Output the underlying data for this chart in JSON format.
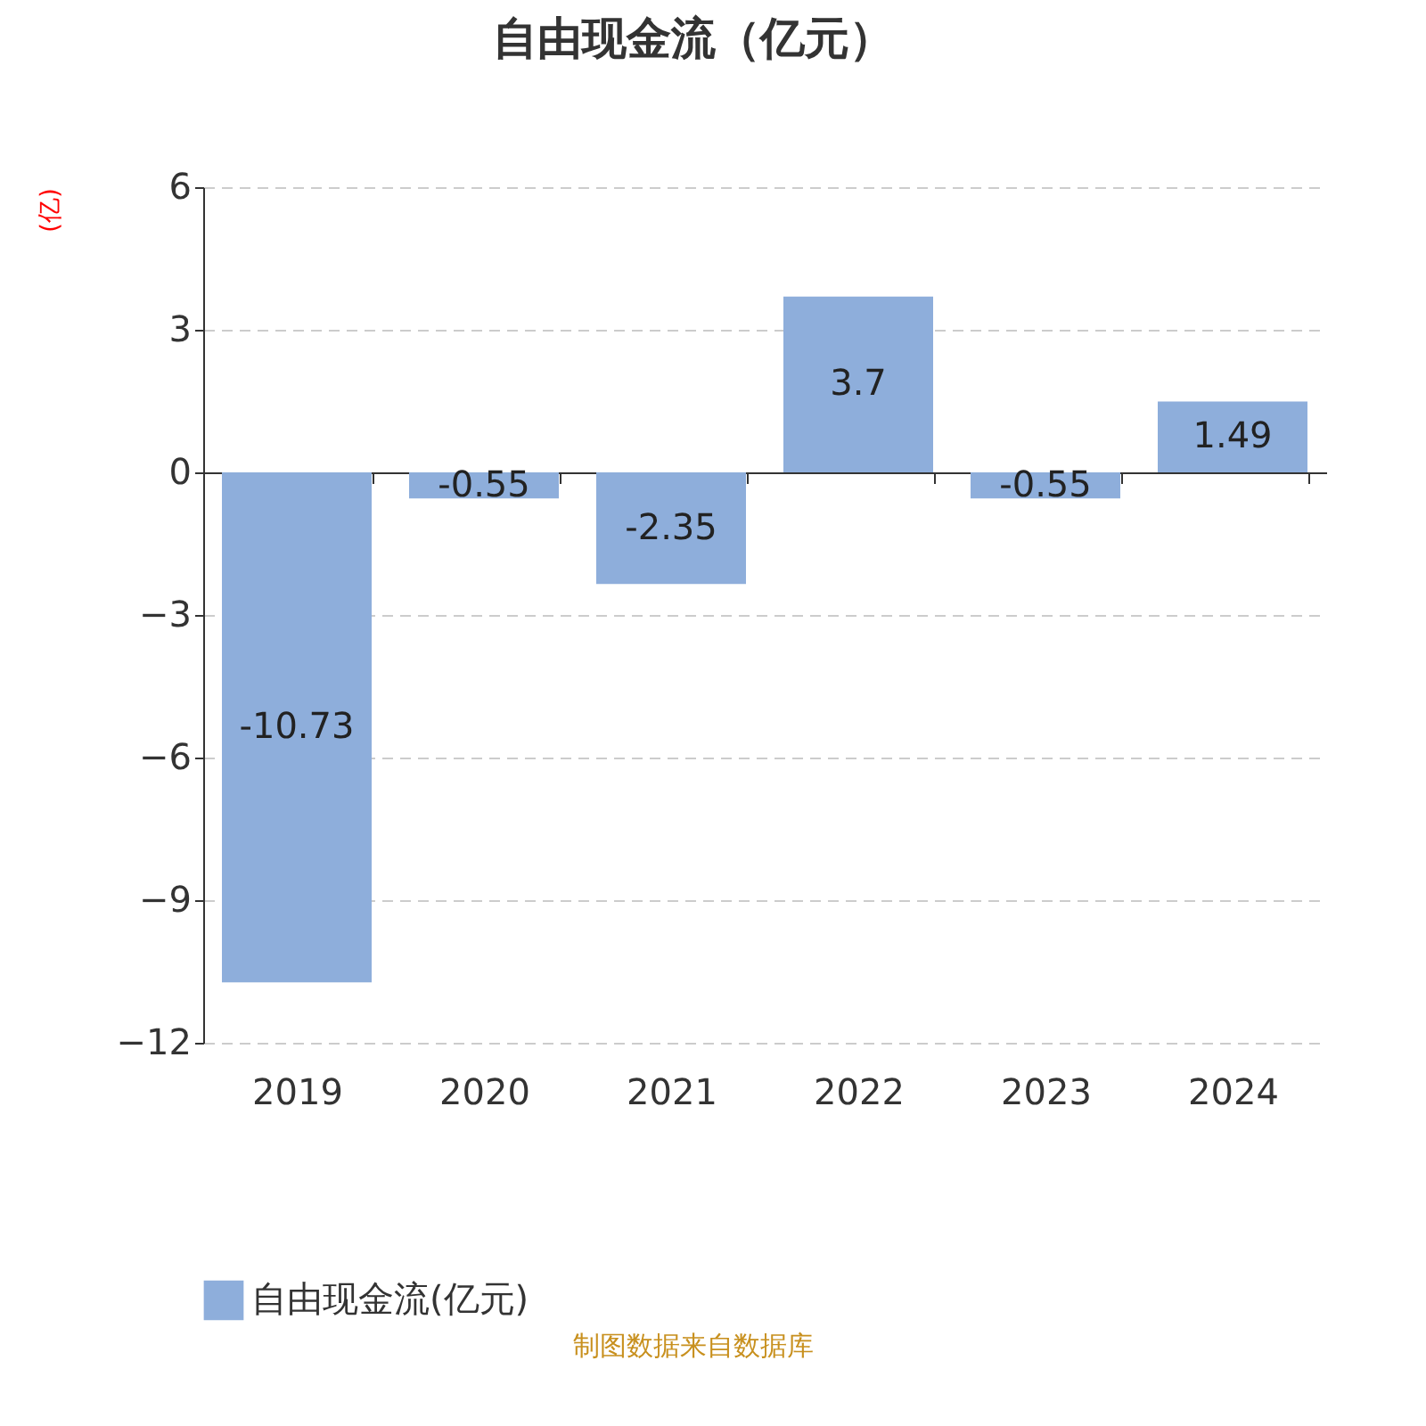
{
  "chart_data": {
    "type": "bar",
    "title": "自由现金流（亿元）",
    "ylabel": "(亿)",
    "categories": [
      "2019",
      "2020",
      "2021",
      "2022",
      "2023",
      "2024"
    ],
    "series": [
      {
        "name": "自由现金流(亿元)",
        "color": "#8eaedb",
        "values": [
          -10.73,
          -0.55,
          -2.35,
          3.7,
          -0.55,
          1.49
        ]
      }
    ],
    "ylim": [
      -12,
      6
    ],
    "yticks": [
      -12,
      -9,
      -6,
      -3,
      0,
      3,
      6
    ],
    "grid": "y",
    "legend": "bottom",
    "data_labels": true,
    "annotations": [
      "制图数据来自数据库"
    ]
  }
}
